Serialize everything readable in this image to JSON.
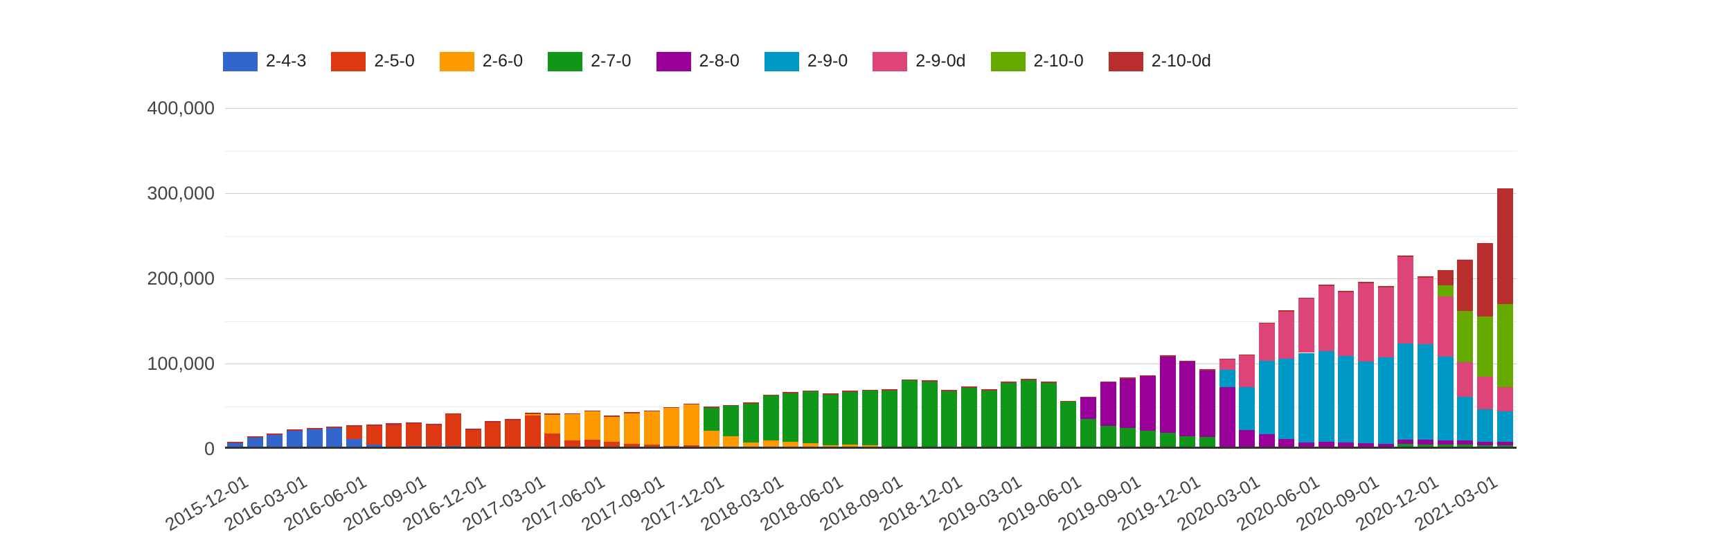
{
  "page": {
    "background": "#ffffff"
  },
  "legend": {
    "items": [
      {
        "label": "2-4-3",
        "color": "#3366CC"
      },
      {
        "label": "2-5-0",
        "color": "#DC3912"
      },
      {
        "label": "2-6-0",
        "color": "#FF9900"
      },
      {
        "label": "2-7-0",
        "color": "#109618"
      },
      {
        "label": "2-8-0",
        "color": "#990099"
      },
      {
        "label": "2-9-0",
        "color": "#0099C6"
      },
      {
        "label": "2-9-0d",
        "color": "#DD4477"
      },
      {
        "label": "2-10-0",
        "color": "#66AA00"
      },
      {
        "label": "2-10-0d",
        "color": "#B82E2E"
      }
    ]
  },
  "y_axis": {
    "tick_labels": [
      "0",
      "100,000",
      "200,000",
      "300,000",
      "400,000"
    ],
    "tick_values": [
      0,
      100000,
      200000,
      300000,
      400000
    ]
  },
  "x_axis": {
    "tick_labels": [
      "2015-12-01",
      "2016-03-01",
      "2016-06-01",
      "2016-09-01",
      "2016-12-01",
      "2017-03-01",
      "2017-06-01",
      "2017-09-01",
      "2017-12-01",
      "2018-03-01",
      "2018-06-01",
      "2018-09-01",
      "2018-12-01",
      "2019-03-01",
      "2019-06-01",
      "2019-09-01",
      "2019-12-01",
      "2020-03-01",
      "2020-06-01",
      "2020-09-01",
      "2020-12-01",
      "2021-03-01"
    ],
    "label_every_n_bars": 3
  },
  "chart_data": {
    "type": "bar",
    "stacked": true,
    "title": "",
    "xlabel": "",
    "ylabel": "",
    "ylim": [
      0,
      400000
    ],
    "major_grid_step": 100000,
    "minor_grid_step": 50000,
    "grid": true,
    "legend_position": "top",
    "categories": [
      "2015-12",
      "2016-01",
      "2016-02",
      "2016-03",
      "2016-04",
      "2016-05",
      "2016-06",
      "2016-07",
      "2016-08",
      "2016-09",
      "2016-10",
      "2016-11",
      "2016-12",
      "2017-01",
      "2017-02",
      "2017-03",
      "2017-04",
      "2017-05",
      "2017-06",
      "2017-07",
      "2017-08",
      "2017-09",
      "2017-10",
      "2017-11",
      "2017-12",
      "2018-01",
      "2018-02",
      "2018-03",
      "2018-04",
      "2018-05",
      "2018-06",
      "2018-07",
      "2018-08",
      "2018-09",
      "2018-10",
      "2018-11",
      "2018-12",
      "2019-01",
      "2019-02",
      "2019-03",
      "2019-04",
      "2019-05",
      "2019-06",
      "2019-07",
      "2019-08",
      "2019-09",
      "2019-10",
      "2019-11",
      "2019-12",
      "2020-01",
      "2020-02",
      "2020-03",
      "2020-04",
      "2020-05",
      "2020-06",
      "2020-07",
      "2020-08",
      "2020-09",
      "2020-10",
      "2020-11",
      "2020-12",
      "2021-01",
      "2021-02",
      "2021-03",
      "2021-04"
    ],
    "series": [
      {
        "name": "2-4-3",
        "color": "#3366CC",
        "values": [
          6800,
          13000,
          16200,
          20900,
          23100,
          24700,
          11600,
          4800,
          2700,
          3000,
          2900,
          3300,
          1800,
          1500,
          1500,
          1200,
          1000,
          800,
          800,
          500,
          500,
          400,
          300,
          300,
          0,
          0,
          0,
          0,
          0,
          0,
          0,
          0,
          0,
          0,
          0,
          0,
          0,
          0,
          0,
          0,
          0,
          0,
          0,
          0,
          0,
          0,
          0,
          0,
          0,
          0,
          0,
          0,
          0,
          0,
          0,
          0,
          0,
          0,
          0,
          0,
          0,
          0,
          0,
          0,
          0
        ]
      },
      {
        "name": "2-5-0",
        "color": "#DC3912",
        "values": [
          0,
          0,
          0,
          0,
          0,
          0,
          14200,
          21700,
          25300,
          26000,
          25000,
          37000,
          20500,
          29500,
          31500,
          37500,
          16500,
          9000,
          9500,
          7500,
          5200,
          4500,
          3300,
          3500,
          1600,
          2400,
          2000,
          1400,
          1900,
          1600,
          1100,
          800,
          800,
          600,
          500,
          500,
          400,
          0,
          0,
          0,
          0,
          0,
          0,
          0,
          0,
          0,
          0,
          0,
          0,
          0,
          0,
          0,
          0,
          0,
          0,
          0,
          0,
          0,
          0,
          0,
          0,
          0,
          0,
          0,
          0
        ]
      },
      {
        "name": "2-6-0",
        "color": "#FF9900",
        "values": [
          0,
          0,
          0,
          0,
          0,
          0,
          0,
          0,
          0,
          0,
          0,
          0,
          0,
          0,
          0,
          2000,
          22500,
          30500,
          33500,
          29500,
          36000,
          38800,
          44200,
          47900,
          19500,
          11900,
          5400,
          8100,
          6200,
          5200,
          2900,
          4100,
          3300,
          2200,
          2200,
          2000,
          2000,
          2000,
          1800,
          1800,
          1800,
          1600,
          1400,
          1400,
          1400,
          1400,
          1400,
          1000,
          1000,
          800,
          0,
          0,
          0,
          0,
          0,
          0,
          0,
          0,
          0,
          0,
          0,
          0,
          0,
          0,
          0
        ]
      },
      {
        "name": "2-7-0",
        "color": "#109618",
        "values": [
          0,
          0,
          0,
          0,
          0,
          0,
          0,
          0,
          0,
          0,
          0,
          0,
          0,
          0,
          0,
          0,
          0,
          0,
          0,
          0,
          0,
          0,
          0,
          0,
          27200,
          35900,
          45500,
          53100,
          57200,
          60500,
          59500,
          61800,
          63900,
          65800,
          77400,
          76600,
          65400,
          69900,
          66800,
          75500,
          78800,
          76000,
          53800,
          33900,
          25800,
          23100,
          19800,
          17500,
          13800,
          12800,
          0,
          0,
          0,
          0,
          0,
          0,
          0,
          0,
          0,
          5400,
          5000,
          4500,
          4500,
          4000,
          4000
        ]
      },
      {
        "name": "2-8-0",
        "color": "#990099",
        "values": [
          0,
          0,
          0,
          0,
          0,
          0,
          0,
          0,
          0,
          0,
          0,
          0,
          0,
          0,
          0,
          0,
          0,
          0,
          0,
          0,
          0,
          0,
          0,
          0,
          0,
          0,
          0,
          0,
          0,
          0,
          0,
          0,
          0,
          0,
          0,
          0,
          0,
          0,
          0,
          0,
          0,
          0,
          0,
          24700,
          50500,
          57800,
          63800,
          89800,
          87300,
          78400,
          72500,
          22000,
          17000,
          11600,
          7600,
          8000,
          7000,
          6500,
          5500,
          5200,
          5500,
          5000,
          5000,
          4300,
          4200
        ]
      },
      {
        "name": "2-9-0",
        "color": "#0099C6",
        "values": [
          0,
          0,
          0,
          0,
          0,
          0,
          0,
          0,
          0,
          0,
          0,
          0,
          0,
          0,
          0,
          0,
          0,
          0,
          0,
          0,
          0,
          0,
          0,
          0,
          0,
          0,
          0,
          0,
          0,
          0,
          0,
          0,
          0,
          0,
          0,
          0,
          0,
          0,
          0,
          0,
          0,
          0,
          0,
          0,
          0,
          0,
          0,
          0,
          0,
          0,
          20400,
          50500,
          86000,
          94000,
          105000,
          107000,
          102000,
          96000,
          101500,
          113000,
          112000,
          99000,
          51500,
          38000,
          36000
        ]
      },
      {
        "name": "2-9-0d",
        "color": "#DD4477",
        "values": [
          0,
          0,
          0,
          0,
          0,
          0,
          0,
          0,
          0,
          0,
          0,
          0,
          0,
          0,
          0,
          0,
          0,
          0,
          0,
          0,
          0,
          0,
          0,
          0,
          0,
          0,
          0,
          0,
          0,
          0,
          0,
          0,
          0,
          0,
          0,
          0,
          0,
          0,
          0,
          0,
          0,
          0,
          0,
          0,
          0,
          0,
          0,
          0,
          0,
          0,
          11900,
          37000,
          44000,
          55500,
          63500,
          76000,
          75000,
          92000,
          82500,
          101500,
          78500,
          70000,
          41000,
          38000,
          28500
        ]
      },
      {
        "name": "2-10-0",
        "color": "#66AA00",
        "values": [
          0,
          0,
          0,
          0,
          0,
          0,
          0,
          0,
          0,
          0,
          0,
          0,
          0,
          0,
          0,
          0,
          0,
          0,
          0,
          0,
          0,
          0,
          0,
          0,
          0,
          0,
          0,
          0,
          0,
          0,
          0,
          0,
          0,
          0,
          0,
          0,
          0,
          0,
          0,
          0,
          0,
          0,
          0,
          0,
          0,
          0,
          0,
          0,
          0,
          0,
          0,
          0,
          0,
          0,
          0,
          0,
          0,
          0,
          0,
          0,
          0,
          13600,
          60000,
          71000,
          97000
        ]
      },
      {
        "name": "2-10-0d",
        "color": "#B82E2E",
        "values": [
          1600,
          1600,
          1600,
          1600,
          1600,
          1600,
          1600,
          1900,
          1900,
          1500,
          1000,
          1500,
          1500,
          1500,
          1600,
          1500,
          1500,
          1200,
          1000,
          1300,
          900,
          800,
          800,
          1500,
          1400,
          1400,
          1400,
          1200,
          1200,
          1100,
          1100,
          1200,
          1200,
          1200,
          1500,
          1500,
          1400,
          1400,
          1400,
          1400,
          1400,
          1400,
          1000,
          1100,
          1000,
          1100,
          1100,
          1100,
          1100,
          1100,
          1100,
          1000,
          1000,
          1000,
          1500,
          1400,
          1100,
          1400,
          1000,
          2000,
          1500,
          17700,
          60000,
          86500,
          136000
        ]
      }
    ]
  },
  "layout_colors": {
    "major_gridline": "#cccccc",
    "minor_gridline": "#ebebeb",
    "axis_line": "#333333",
    "tick_text": "#444444",
    "legend_text": "#222222"
  }
}
